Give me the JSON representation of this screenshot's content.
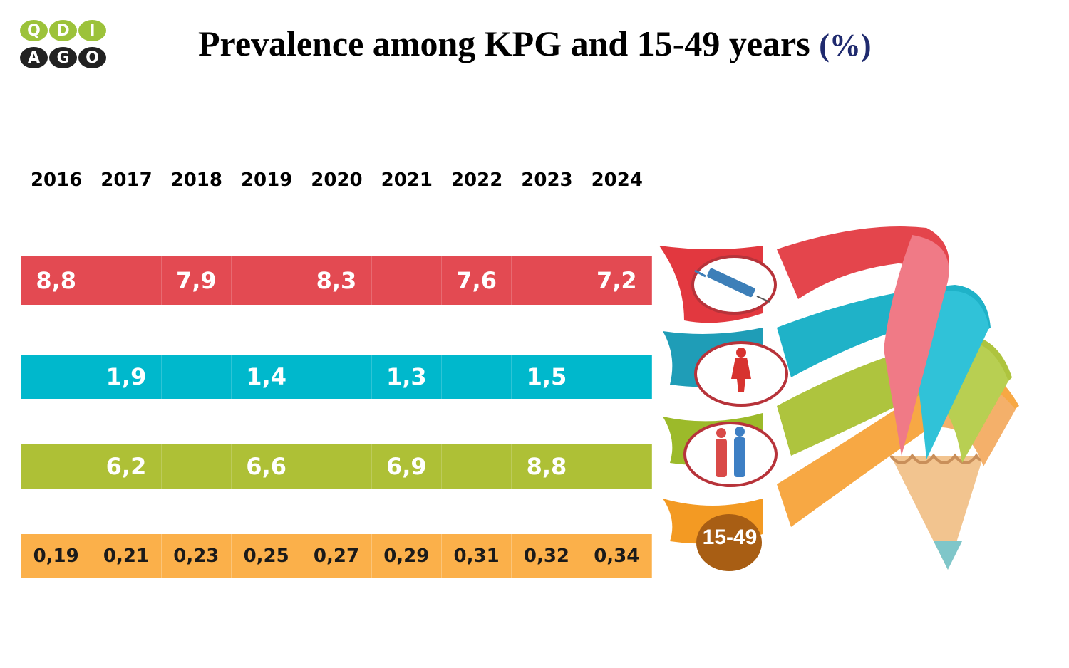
{
  "logo": {
    "top": [
      "Q",
      "D",
      "I"
    ],
    "bottom": [
      "A",
      "G",
      "O"
    ]
  },
  "title": {
    "text": "Prevalence among KPG and 15-49 years",
    "unit": "(%)"
  },
  "colors": {
    "red": "#e34a52",
    "teal": "#00b8cc",
    "olive": "#aec036",
    "orange": "#fbb04a"
  },
  "icons": [
    "syringe-icon",
    "woman-silhouette-icon",
    "men-couple-icon"
  ],
  "badge": "15-49",
  "chart_data": {
    "type": "table",
    "categories": [
      "2016",
      "2017",
      "2018",
      "2019",
      "2020",
      "2021",
      "2022",
      "2023",
      "2024"
    ],
    "series": [
      {
        "color": "#e34a52",
        "values": [
          "8,8",
          "",
          "7,9",
          "",
          "8,3",
          "",
          "7,6",
          "",
          "7,2"
        ]
      },
      {
        "color": "#00b8cc",
        "values": [
          "",
          "1,9",
          "",
          "1,4",
          "",
          "1,3",
          "",
          "1,5",
          ""
        ]
      },
      {
        "color": "#aec036",
        "values": [
          "",
          "6,2",
          "",
          "6,6",
          "",
          "6,9",
          "",
          "8,8",
          ""
        ]
      },
      {
        "name": "15-49",
        "color": "#fbb04a",
        "values": [
          "0,19",
          "0,21",
          "0,23",
          "0,25",
          "0,27",
          "0,29",
          "0,31",
          "0,32",
          "0,34"
        ]
      }
    ]
  }
}
